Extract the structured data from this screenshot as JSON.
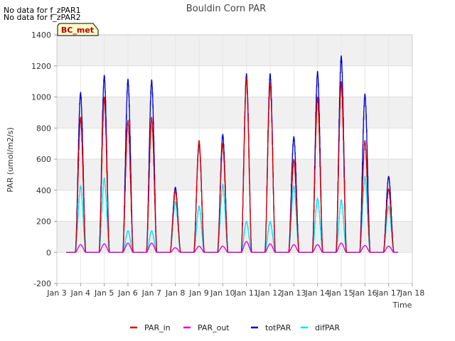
{
  "notes": [
    "No data for f_zPAR1",
    "No data for f_zPAR2"
  ],
  "badge": "BC_met",
  "chart_data": {
    "type": "line",
    "title": "Bouldin Corn PAR",
    "xlabel": "Time",
    "ylabel": "PAR (umol/m2/s)",
    "xlim": [
      3,
      18
    ],
    "ylim": [
      -200,
      1400
    ],
    "xticks": [
      3,
      4,
      5,
      6,
      7,
      8,
      9,
      10,
      11,
      12,
      13,
      14,
      15,
      16,
      17,
      18
    ],
    "xtick_labels": [
      "Jan 3",
      "Jan 4",
      "Jan 5",
      "Jan 6",
      "Jan 7",
      "Jan 8",
      "Jan 9",
      "Jan 10",
      "Jan 11",
      "Jan 12",
      "Jan 13",
      "Jan 14",
      "Jan 15",
      "Jan 16",
      "Jan 17",
      "Jan 18"
    ],
    "yticks": [
      -200,
      0,
      200,
      400,
      600,
      800,
      1000,
      1200,
      1400
    ],
    "grid": true,
    "legend_position": "bottom",
    "data_range": [
      3.4,
      17.4
    ],
    "day_centers": [
      4.0,
      5.0,
      6.0,
      7.0,
      8.0,
      9.0,
      10.0,
      11.0,
      12.0,
      13.0,
      14.0,
      15.0,
      16.0,
      17.0
    ],
    "series": [
      {
        "name": "PAR_in",
        "color": "#dd0000",
        "daily_peaks": [
          870,
          1000,
          850,
          870,
          400,
          720,
          700,
          1120,
          1090,
          600,
          1000,
          1100,
          720,
          410
        ]
      },
      {
        "name": "PAR_out",
        "color": "#dd00dd",
        "daily_peaks": [
          50,
          55,
          60,
          60,
          30,
          40,
          40,
          70,
          55,
          50,
          50,
          60,
          45,
          40
        ]
      },
      {
        "name": "totPAR",
        "color": "#0000cc",
        "daily_peaks": [
          1030,
          1140,
          1115,
          1110,
          420,
          700,
          760,
          1150,
          1150,
          745,
          1165,
          1265,
          1020,
          490
        ]
      },
      {
        "name": "difPAR",
        "color": "#00e5ff",
        "daily_peaks": [
          430,
          480,
          140,
          140,
          330,
          300,
          440,
          200,
          200,
          430,
          350,
          340,
          490,
          300
        ]
      }
    ]
  }
}
